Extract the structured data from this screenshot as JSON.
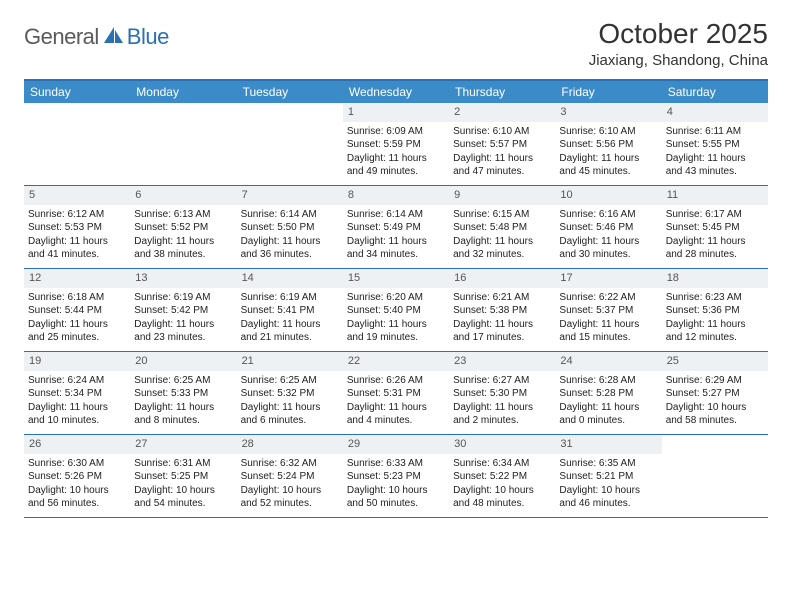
{
  "logo": {
    "general": "General",
    "blue": "Blue"
  },
  "title": "October 2025",
  "location": "Jiaxiang, Shandong, China",
  "colors": {
    "header_bg": "#3b8bc9",
    "accent": "#2b6fb5",
    "daynum_bg": "#eef1f4"
  },
  "dayNames": [
    "Sunday",
    "Monday",
    "Tuesday",
    "Wednesday",
    "Thursday",
    "Friday",
    "Saturday"
  ],
  "weeks": [
    [
      {
        "n": "",
        "empty": true
      },
      {
        "n": "",
        "empty": true
      },
      {
        "n": "",
        "empty": true
      },
      {
        "n": "1",
        "sr": "6:09 AM",
        "ss": "5:59 PM",
        "dl": "11 hours and 49 minutes."
      },
      {
        "n": "2",
        "sr": "6:10 AM",
        "ss": "5:57 PM",
        "dl": "11 hours and 47 minutes."
      },
      {
        "n": "3",
        "sr": "6:10 AM",
        "ss": "5:56 PM",
        "dl": "11 hours and 45 minutes."
      },
      {
        "n": "4",
        "sr": "6:11 AM",
        "ss": "5:55 PM",
        "dl": "11 hours and 43 minutes."
      }
    ],
    [
      {
        "n": "5",
        "sr": "6:12 AM",
        "ss": "5:53 PM",
        "dl": "11 hours and 41 minutes."
      },
      {
        "n": "6",
        "sr": "6:13 AM",
        "ss": "5:52 PM",
        "dl": "11 hours and 38 minutes."
      },
      {
        "n": "7",
        "sr": "6:14 AM",
        "ss": "5:50 PM",
        "dl": "11 hours and 36 minutes."
      },
      {
        "n": "8",
        "sr": "6:14 AM",
        "ss": "5:49 PM",
        "dl": "11 hours and 34 minutes."
      },
      {
        "n": "9",
        "sr": "6:15 AM",
        "ss": "5:48 PM",
        "dl": "11 hours and 32 minutes."
      },
      {
        "n": "10",
        "sr": "6:16 AM",
        "ss": "5:46 PM",
        "dl": "11 hours and 30 minutes."
      },
      {
        "n": "11",
        "sr": "6:17 AM",
        "ss": "5:45 PM",
        "dl": "11 hours and 28 minutes."
      }
    ],
    [
      {
        "n": "12",
        "sr": "6:18 AM",
        "ss": "5:44 PM",
        "dl": "11 hours and 25 minutes."
      },
      {
        "n": "13",
        "sr": "6:19 AM",
        "ss": "5:42 PM",
        "dl": "11 hours and 23 minutes."
      },
      {
        "n": "14",
        "sr": "6:19 AM",
        "ss": "5:41 PM",
        "dl": "11 hours and 21 minutes."
      },
      {
        "n": "15",
        "sr": "6:20 AM",
        "ss": "5:40 PM",
        "dl": "11 hours and 19 minutes."
      },
      {
        "n": "16",
        "sr": "6:21 AM",
        "ss": "5:38 PM",
        "dl": "11 hours and 17 minutes."
      },
      {
        "n": "17",
        "sr": "6:22 AM",
        "ss": "5:37 PM",
        "dl": "11 hours and 15 minutes."
      },
      {
        "n": "18",
        "sr": "6:23 AM",
        "ss": "5:36 PM",
        "dl": "11 hours and 12 minutes."
      }
    ],
    [
      {
        "n": "19",
        "sr": "6:24 AM",
        "ss": "5:34 PM",
        "dl": "11 hours and 10 minutes."
      },
      {
        "n": "20",
        "sr": "6:25 AM",
        "ss": "5:33 PM",
        "dl": "11 hours and 8 minutes."
      },
      {
        "n": "21",
        "sr": "6:25 AM",
        "ss": "5:32 PM",
        "dl": "11 hours and 6 minutes."
      },
      {
        "n": "22",
        "sr": "6:26 AM",
        "ss": "5:31 PM",
        "dl": "11 hours and 4 minutes."
      },
      {
        "n": "23",
        "sr": "6:27 AM",
        "ss": "5:30 PM",
        "dl": "11 hours and 2 minutes."
      },
      {
        "n": "24",
        "sr": "6:28 AM",
        "ss": "5:28 PM",
        "dl": "11 hours and 0 minutes."
      },
      {
        "n": "25",
        "sr": "6:29 AM",
        "ss": "5:27 PM",
        "dl": "10 hours and 58 minutes."
      }
    ],
    [
      {
        "n": "26",
        "sr": "6:30 AM",
        "ss": "5:26 PM",
        "dl": "10 hours and 56 minutes."
      },
      {
        "n": "27",
        "sr": "6:31 AM",
        "ss": "5:25 PM",
        "dl": "10 hours and 54 minutes."
      },
      {
        "n": "28",
        "sr": "6:32 AM",
        "ss": "5:24 PM",
        "dl": "10 hours and 52 minutes."
      },
      {
        "n": "29",
        "sr": "6:33 AM",
        "ss": "5:23 PM",
        "dl": "10 hours and 50 minutes."
      },
      {
        "n": "30",
        "sr": "6:34 AM",
        "ss": "5:22 PM",
        "dl": "10 hours and 48 minutes."
      },
      {
        "n": "31",
        "sr": "6:35 AM",
        "ss": "5:21 PM",
        "dl": "10 hours and 46 minutes."
      },
      {
        "n": "",
        "empty": true
      }
    ]
  ],
  "labels": {
    "sunrise": "Sunrise: ",
    "sunset": "Sunset: ",
    "daylight": "Daylight: "
  }
}
